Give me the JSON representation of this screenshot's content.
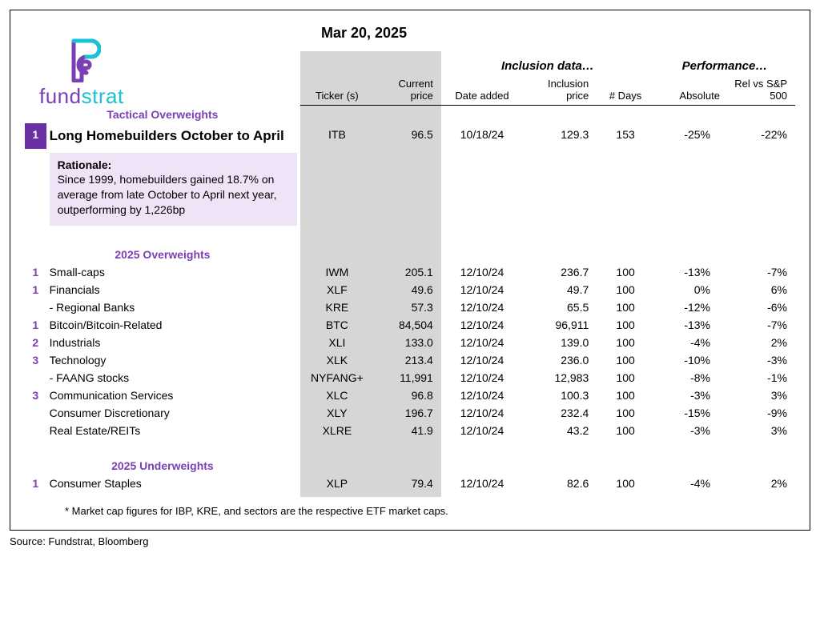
{
  "date_title": "Mar 20, 2025",
  "logo": {
    "word1": "fund",
    "word2": "strat"
  },
  "super_headers": {
    "inclusion": "Inclusion data…",
    "performance": "Performance…"
  },
  "headers": {
    "ticker": "Ticker (s)",
    "price": "Current price",
    "date_added": "Date added",
    "incl_price": "Inclusion price",
    "days": "# Days",
    "absolute": "Absolute",
    "rel": "Rel vs S&P 500"
  },
  "sections": {
    "tactical": {
      "title": "Tactical Overweights",
      "row": {
        "idx": "1",
        "name": "Long Homebuilders October to April",
        "ticker": "ITB",
        "price": "96.5",
        "date": "10/18/24",
        "incl": "129.3",
        "days": "153",
        "abs": "-25%",
        "rel": "-22%"
      },
      "rationale_label": "Rationale:",
      "rationale_text": "Since 1999, homebuilders gained 18.7% on average from late October to April next year, outperforming by 1,226bp"
    },
    "over": {
      "title": "2025 Overweights",
      "rows": [
        {
          "idx": "1",
          "name": "Small-caps",
          "ticker": "IWM",
          "price": "205.1",
          "date": "12/10/24",
          "incl": "236.7",
          "days": "100",
          "abs": "-13%",
          "rel": "-7%"
        },
        {
          "idx": "1",
          "name": "Financials",
          "ticker": "XLF",
          "price": "49.6",
          "date": "12/10/24",
          "incl": "49.7",
          "days": "100",
          "abs": "0%",
          "rel": "6%"
        },
        {
          "idx": "",
          "name": "- Regional Banks",
          "indent": true,
          "ticker": "KRE",
          "price": "57.3",
          "date": "12/10/24",
          "incl": "65.5",
          "days": "100",
          "abs": "-12%",
          "rel": "-6%"
        },
        {
          "idx": "1",
          "name": "Bitcoin/Bitcoin-Related",
          "ticker": "BTC",
          "price": "84,504",
          "date": "12/10/24",
          "incl": "96,911",
          "days": "100",
          "abs": "-13%",
          "rel": "-7%"
        },
        {
          "idx": "2",
          "name": "Industrials",
          "ticker": "XLI",
          "price": "133.0",
          "date": "12/10/24",
          "incl": "139.0",
          "days": "100",
          "abs": "-4%",
          "rel": "2%"
        },
        {
          "idx": "3",
          "name": "Technology",
          "ticker": "XLK",
          "price": "213.4",
          "date": "12/10/24",
          "incl": "236.0",
          "days": "100",
          "abs": "-10%",
          "rel": "-3%"
        },
        {
          "idx": "",
          "name": "- FAANG stocks",
          "indent": true,
          "ticker": "NYFANG+",
          "price": "11,991",
          "date": "12/10/24",
          "incl": "12,983",
          "days": "100",
          "abs": "-8%",
          "rel": "-1%"
        },
        {
          "idx": "3",
          "name": "Communication Services",
          "ticker": "XLC",
          "price": "96.8",
          "date": "12/10/24",
          "incl": "100.3",
          "days": "100",
          "abs": "-3%",
          "rel": "3%"
        },
        {
          "idx": "",
          "name": "Consumer Discretionary",
          "ticker": "XLY",
          "price": "196.7",
          "date": "12/10/24",
          "incl": "232.4",
          "days": "100",
          "abs": "-15%",
          "rel": "-9%"
        },
        {
          "idx": "",
          "name": "Real Estate/REITs",
          "ticker": "XLRE",
          "price": "41.9",
          "date": "12/10/24",
          "incl": "43.2",
          "days": "100",
          "abs": "-3%",
          "rel": "3%"
        }
      ]
    },
    "under": {
      "title": "2025 Underweights",
      "rows": [
        {
          "idx": "1",
          "name": "Consumer Staples",
          "ticker": "XLP",
          "price": "79.4",
          "date": "12/10/24",
          "incl": "82.6",
          "days": "100",
          "abs": "-4%",
          "rel": "2%"
        }
      ]
    }
  },
  "footnote": "* Market cap figures for IBP, KRE, and sectors are the respective ETF market caps.",
  "source": "Source: Fundstrat, Bloomberg"
}
